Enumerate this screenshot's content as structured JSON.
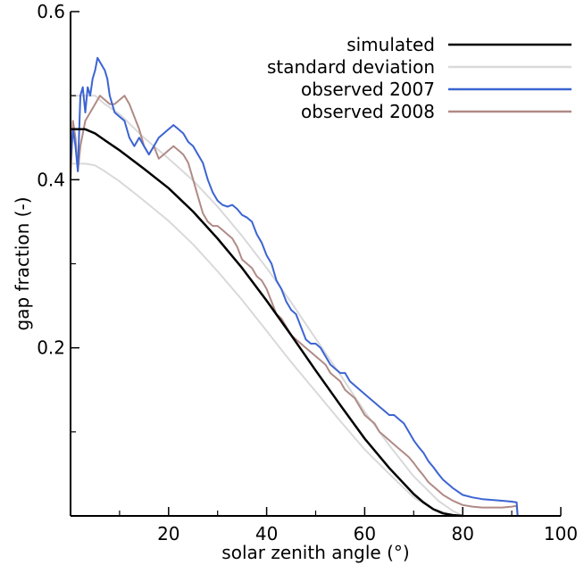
{
  "chart_data": {
    "type": "line",
    "title": "",
    "xlabel": "solar zenith angle (°)",
    "ylabel": "gap fraction (-)",
    "xlim": [
      0,
      100
    ],
    "ylim": [
      0,
      0.6
    ],
    "x_ticks": [
      20,
      40,
      60,
      80,
      100
    ],
    "x_minor_ticks": [
      10,
      30,
      50,
      70,
      90
    ],
    "y_ticks": [
      0.2,
      0.4,
      0.6
    ],
    "y_minor_ticks": [
      0.1,
      0.3,
      0.5
    ],
    "grid": false,
    "legend": "top-right",
    "series": [
      {
        "name": "simulated",
        "color": "#000000",
        "x": [
          0,
          3,
          5,
          7,
          10,
          15,
          20,
          25,
          30,
          35,
          40,
          45,
          50,
          55,
          60,
          65,
          70,
          72,
          74,
          76,
          78,
          80
        ],
        "y": [
          0.46,
          0.46,
          0.455,
          0.447,
          0.435,
          0.413,
          0.39,
          0.362,
          0.33,
          0.295,
          0.256,
          0.215,
          0.173,
          0.132,
          0.092,
          0.057,
          0.026,
          0.016,
          0.008,
          0.003,
          0.001,
          0
        ]
      },
      {
        "name": "standard deviation",
        "color": "#d9d9d9",
        "x": [
          0,
          3,
          5,
          7,
          10,
          15,
          20,
          25,
          30,
          35,
          40,
          45,
          50,
          55,
          60,
          65,
          70,
          74,
          78,
          80
        ],
        "y": [
          0.419,
          0.419,
          0.417,
          0.41,
          0.398,
          0.375,
          0.351,
          0.323,
          0.291,
          0.257,
          0.22,
          0.183,
          0.148,
          0.113,
          0.079,
          0.05,
          0.022,
          0.008,
          0.001,
          0
        ]
      },
      {
        "name": "",
        "color": "#d9d9d9",
        "x": [
          0,
          3,
          5,
          7,
          10,
          15,
          20,
          25,
          30,
          35,
          40,
          45,
          50,
          55,
          60,
          65,
          70,
          75,
          78,
          80
        ],
        "y": [
          0.5,
          0.5,
          0.5,
          0.49,
          0.478,
          0.45,
          0.425,
          0.399,
          0.368,
          0.333,
          0.295,
          0.254,
          0.211,
          0.168,
          0.124,
          0.084,
          0.047,
          0.018,
          0.006,
          0
        ]
      },
      {
        "name": "observed 2007",
        "color": "#3c64d2",
        "x": [
          0,
          0.5,
          1,
          1.5,
          2,
          2.5,
          3,
          3.5,
          4,
          4.5,
          5,
          5.5,
          6,
          6.5,
          7,
          7.5,
          8,
          9,
          10,
          11,
          12,
          13,
          14,
          15,
          16,
          17,
          18,
          19,
          20,
          21,
          22,
          23,
          24,
          25,
          26,
          27,
          28,
          29,
          30,
          31,
          32,
          33,
          34,
          35,
          36,
          37,
          38,
          39,
          40,
          41,
          42,
          43,
          44,
          45,
          46,
          47,
          48,
          49,
          50,
          51,
          52,
          53,
          54,
          55,
          56,
          57,
          58,
          59,
          60,
          61,
          62,
          63,
          64,
          65,
          66,
          67,
          68,
          69,
          70,
          71,
          72,
          73,
          74,
          75,
          76,
          78,
          80,
          82,
          84,
          86,
          88,
          90,
          91,
          91.2
        ],
        "y": [
          0.42,
          0.46,
          0.44,
          0.41,
          0.5,
          0.51,
          0.48,
          0.51,
          0.5,
          0.52,
          0.53,
          0.545,
          0.54,
          0.535,
          0.53,
          0.52,
          0.5,
          0.48,
          0.475,
          0.47,
          0.45,
          0.44,
          0.45,
          0.44,
          0.43,
          0.44,
          0.45,
          0.455,
          0.46,
          0.465,
          0.46,
          0.455,
          0.445,
          0.44,
          0.43,
          0.42,
          0.4,
          0.385,
          0.375,
          0.37,
          0.368,
          0.37,
          0.365,
          0.358,
          0.355,
          0.35,
          0.335,
          0.325,
          0.31,
          0.3,
          0.28,
          0.27,
          0.255,
          0.245,
          0.24,
          0.225,
          0.21,
          0.205,
          0.205,
          0.2,
          0.19,
          0.18,
          0.175,
          0.17,
          0.17,
          0.16,
          0.155,
          0.15,
          0.145,
          0.14,
          0.135,
          0.13,
          0.125,
          0.12,
          0.12,
          0.115,
          0.11,
          0.1,
          0.09,
          0.082,
          0.075,
          0.065,
          0.058,
          0.05,
          0.043,
          0.033,
          0.025,
          0.022,
          0.02,
          0.019,
          0.018,
          0.017,
          0.016,
          0
        ]
      },
      {
        "name": "observed 2008",
        "color": "#b08a86",
        "x": [
          0,
          0.5,
          1,
          1.5,
          2,
          3,
          4,
          5,
          6,
          7,
          8,
          9,
          10,
          11,
          12,
          13,
          14,
          15,
          16,
          17,
          18,
          19,
          20,
          21,
          22,
          23,
          24,
          25,
          26,
          27,
          28,
          29,
          30,
          31,
          32,
          33,
          34,
          35,
          36,
          37,
          38,
          39,
          40,
          41,
          42,
          43,
          44,
          45,
          46,
          47,
          48,
          49,
          50,
          51,
          52,
          53,
          54,
          55,
          56,
          57,
          58,
          59,
          60,
          61,
          62,
          63,
          64,
          65,
          66,
          67,
          68,
          69,
          70,
          71,
          72,
          73,
          74,
          75,
          76,
          78,
          80,
          82,
          84,
          86,
          88,
          90,
          91,
          91.2
        ],
        "y": [
          0.4,
          0.47,
          0.45,
          0.41,
          0.44,
          0.47,
          0.48,
          0.49,
          0.5,
          0.495,
          0.49,
          0.49,
          0.495,
          0.5,
          0.49,
          0.475,
          0.46,
          0.44,
          0.43,
          0.44,
          0.425,
          0.43,
          0.435,
          0.44,
          0.435,
          0.43,
          0.42,
          0.4,
          0.38,
          0.36,
          0.35,
          0.345,
          0.345,
          0.34,
          0.335,
          0.33,
          0.32,
          0.305,
          0.3,
          0.295,
          0.285,
          0.28,
          0.27,
          0.255,
          0.24,
          0.235,
          0.225,
          0.215,
          0.21,
          0.205,
          0.2,
          0.195,
          0.19,
          0.185,
          0.18,
          0.17,
          0.165,
          0.16,
          0.15,
          0.145,
          0.14,
          0.13,
          0.12,
          0.115,
          0.11,
          0.1,
          0.095,
          0.09,
          0.085,
          0.08,
          0.075,
          0.07,
          0.063,
          0.055,
          0.048,
          0.04,
          0.035,
          0.03,
          0.025,
          0.018,
          0.013,
          0.011,
          0.01,
          0.01,
          0.01,
          0.011,
          0.012,
          0
        ]
      }
    ]
  }
}
